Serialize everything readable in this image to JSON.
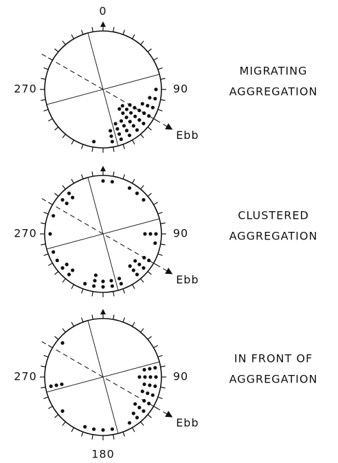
{
  "chart_data": [
    {
      "type": "circular",
      "title": [
        "MIGRATING",
        "AGGREGATION"
      ],
      "angle_labels": [
        0,
        90,
        270
      ],
      "ebb": {
        "label": "Ebb",
        "angle": 120
      },
      "lines": [
        345,
        255
      ],
      "angles": [
        90,
        100,
        110,
        120,
        130,
        140,
        150,
        160,
        170,
        190
      ],
      "counts": [
        1,
        2,
        3,
        5,
        6,
        6,
        4,
        4,
        3,
        1
      ]
    },
    {
      "type": "circular",
      "title": [
        "CLUSTERED",
        "AGGREGATION"
      ],
      "angle_labels": [
        90,
        270
      ],
      "ebb": {
        "label": "Ebb",
        "angle": 120
      },
      "lines": [
        345,
        255
      ],
      "angles": [
        0,
        10,
        30,
        40,
        50,
        90,
        100,
        120,
        130,
        140,
        160,
        170,
        180,
        190,
        200,
        220,
        230,
        240,
        250,
        270,
        290,
        310,
        320
      ],
      "counts": [
        1,
        1,
        1,
        1,
        1,
        3,
        1,
        2,
        3,
        3,
        2,
        2,
        2,
        3,
        1,
        2,
        2,
        1,
        1,
        1,
        1,
        2,
        2
      ]
    },
    {
      "type": "circular",
      "title": [
        "IN FRONT OF",
        "AGGREGATION"
      ],
      "angle_labels": [
        90,
        180,
        270
      ],
      "ebb": {
        "label": "Ebb",
        "angle": 120
      },
      "lines": [
        345,
        255
      ],
      "angles": [
        80,
        90,
        100,
        110,
        120,
        130,
        140,
        150,
        170,
        180,
        190,
        200,
        230,
        260,
        310
      ],
      "counts": [
        3,
        4,
        3,
        3,
        2,
        3,
        2,
        1,
        1,
        1,
        1,
        1,
        1,
        3,
        1
      ]
    }
  ]
}
